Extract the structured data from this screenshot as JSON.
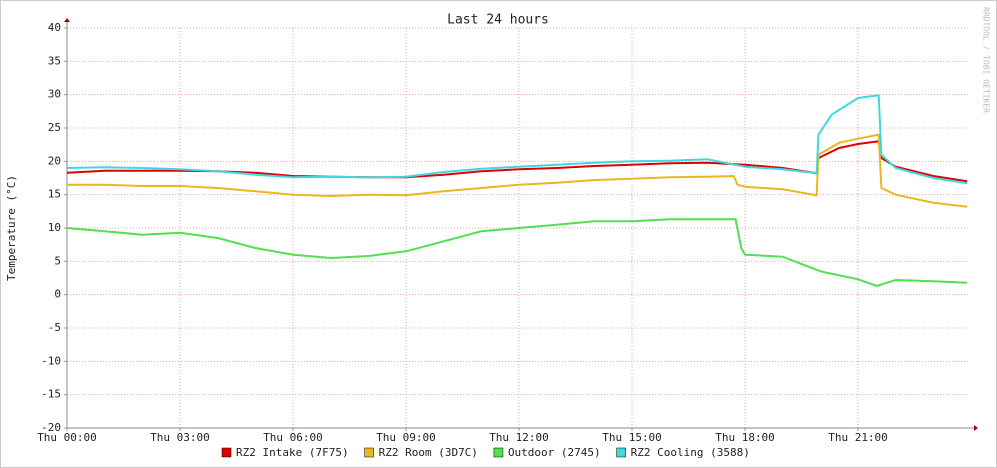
{
  "chart_data": {
    "type": "line",
    "title": "Last 24 hours",
    "y_label": "Temperature (°C)",
    "watermark": "RRDTOOL / TOBI OETIKER",
    "xlim": [
      0,
      23.92
    ],
    "ylim": [
      -20,
      40
    ],
    "grid": true,
    "xticks": [
      {
        "value": 0,
        "label": "Thu 00:00"
      },
      {
        "value": 3,
        "label": "Thu 03:00"
      },
      {
        "value": 6,
        "label": "Thu 06:00"
      },
      {
        "value": 9,
        "label": "Thu 09:00"
      },
      {
        "value": 12,
        "label": "Thu 12:00"
      },
      {
        "value": 15,
        "label": "Thu 15:00"
      },
      {
        "value": 18,
        "label": "Thu 18:00"
      },
      {
        "value": 21,
        "label": "Thu 21:00"
      }
    ],
    "yticks": [
      -20,
      -15,
      -10,
      -5,
      0,
      5,
      10,
      15,
      20,
      25,
      30,
      35,
      40
    ],
    "series": [
      {
        "name": "RZ2 Intake (7F75)",
        "color": "#e00000",
        "x": [
          0,
          1,
          2,
          3,
          4,
          5,
          6,
          7,
          8,
          9,
          10,
          11,
          12,
          13,
          14,
          15,
          16,
          17,
          18,
          19,
          19.9,
          19.95,
          20.5,
          21,
          21.55,
          21.62,
          22,
          23,
          23.9
        ],
        "values": [
          18.3,
          18.6,
          18.6,
          18.6,
          18.5,
          18.3,
          17.8,
          17.7,
          17.6,
          17.6,
          18.0,
          18.5,
          18.8,
          19.0,
          19.3,
          19.5,
          19.7,
          19.8,
          19.5,
          19.0,
          18.2,
          20.5,
          22,
          22.6,
          23,
          20.5,
          19.2,
          17.8,
          17.0
        ]
      },
      {
        "name": "RZ2 Room (3D7C)",
        "color": "#e8b820",
        "x": [
          0,
          1,
          2,
          3,
          4,
          5,
          6,
          7,
          8,
          9,
          10,
          11,
          12,
          13,
          14,
          15,
          16,
          17,
          17.7,
          17.8,
          18,
          19,
          19.9,
          19.95,
          20.5,
          21,
          21.55,
          21.62,
          22,
          23,
          23.9
        ],
        "values": [
          16.5,
          16.5,
          16.3,
          16.3,
          16,
          15.5,
          15.0,
          14.8,
          15,
          14.9,
          15.5,
          16,
          16.5,
          16.8,
          17.2,
          17.4,
          17.6,
          17.7,
          17.8,
          16.5,
          16.2,
          15.8,
          14.9,
          21,
          22.8,
          23.4,
          24,
          16,
          15,
          13.8,
          13.2
        ]
      },
      {
        "name": "Outdoor (2745)",
        "color": "#50e050",
        "x": [
          0,
          1,
          2,
          3,
          4,
          5,
          6,
          7,
          8,
          9,
          10,
          11,
          12,
          13,
          14,
          15,
          16,
          17,
          17.75,
          17.9,
          18,
          19,
          20,
          21,
          21.5,
          22,
          23,
          23.9
        ],
        "values": [
          10,
          9.5,
          9,
          9.3,
          8.5,
          7,
          6,
          5.5,
          5.8,
          6.5,
          8,
          9.5,
          10,
          10.5,
          11,
          11,
          11.3,
          11.3,
          11.3,
          7,
          6,
          5.7,
          3.5,
          2.3,
          1.3,
          2.2,
          2,
          1.8
        ]
      },
      {
        "name": "RZ2 Cooling (3588)",
        "color": "#40d8e0",
        "x": [
          0,
          1,
          2,
          3,
          4,
          5,
          6,
          7,
          8,
          9,
          10,
          11,
          12,
          13,
          14,
          15,
          16,
          17,
          18,
          19,
          19.9,
          19.95,
          20.3,
          21,
          21.55,
          21.62,
          22,
          23,
          23.9
        ],
        "values": [
          19,
          19.1,
          19.0,
          18.8,
          18.5,
          18,
          17.6,
          17.7,
          17.6,
          17.7,
          18.4,
          18.9,
          19.2,
          19.5,
          19.8,
          20,
          20.1,
          20.3,
          19.2,
          18.8,
          18.2,
          24,
          27,
          29.5,
          29.9,
          21,
          19,
          17.5,
          16.7
        ]
      }
    ]
  }
}
